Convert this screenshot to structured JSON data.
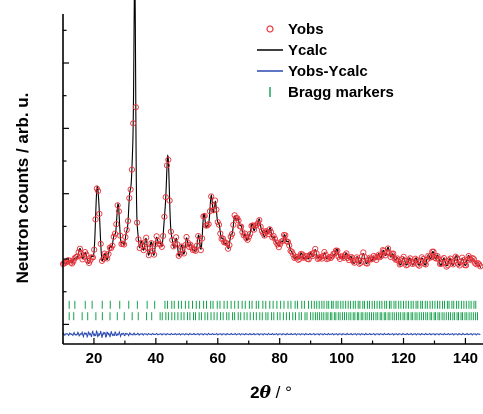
{
  "chart_data": {
    "type": "line",
    "xlabel_symbol": "2",
    "xlabel_theta": "θ",
    "xlabel_unit": " / °",
    "ylabel": "Neutron counts / arb. u.",
    "xlim": [
      10,
      146
    ],
    "ylim": [
      -6,
      95
    ],
    "x_ticks": [
      20,
      40,
      60,
      80,
      100,
      120,
      140
    ],
    "y_ticks_labeled": false,
    "legend_position": "top-right",
    "colors": {
      "yobs": "#e8323a",
      "ycalc": "#000000",
      "diff": "#2a48b0",
      "bragg": "#12a04a"
    },
    "legend": [
      {
        "key": "yobs",
        "label": "Yobs"
      },
      {
        "key": "ycalc",
        "label": "Ycalc"
      },
      {
        "key": "diff",
        "label": "Yobs-Ycalc"
      },
      {
        "key": "bragg",
        "label": "Bragg markers"
      }
    ],
    "background": 17,
    "diff_offset": -3,
    "bragg_row1_level": 6,
    "bragg_row2_level": 2.5,
    "peaks": [
      [
        12,
        0.5,
        1
      ],
      [
        14,
        0.6,
        2
      ],
      [
        15.5,
        0.5,
        5
      ],
      [
        17.2,
        0.5,
        4
      ],
      [
        19.3,
        0.5,
        3
      ],
      [
        21,
        0.5,
        23
      ],
      [
        21.8,
        0.4,
        9
      ],
      [
        23.5,
        0.5,
        4
      ],
      [
        25.2,
        0.5,
        6
      ],
      [
        26.5,
        0.5,
        9
      ],
      [
        27.8,
        0.5,
        19
      ],
      [
        29.2,
        0.5,
        7
      ],
      [
        30.5,
        0.5,
        10
      ],
      [
        31.5,
        0.4,
        17
      ],
      [
        32.1,
        0.4,
        12
      ],
      [
        32.6,
        0.35,
        26
      ],
      [
        33.2,
        0.28,
        82
      ],
      [
        34,
        0.4,
        11
      ],
      [
        35.3,
        0.5,
        8
      ],
      [
        36.8,
        0.5,
        9
      ],
      [
        38.5,
        0.5,
        8
      ],
      [
        40.2,
        0.5,
        9
      ],
      [
        41.4,
        0.5,
        7
      ],
      [
        42.8,
        0.5,
        13
      ],
      [
        43.9,
        0.5,
        33
      ],
      [
        45.2,
        0.5,
        8
      ],
      [
        46.6,
        0.5,
        9
      ],
      [
        48.3,
        0.5,
        7
      ],
      [
        49.9,
        0.5,
        9
      ],
      [
        51.2,
        0.5,
        7
      ],
      [
        52.4,
        0.5,
        5
      ],
      [
        53.8,
        0.5,
        10
      ],
      [
        55.5,
        0.5,
        16
      ],
      [
        56.7,
        0.5,
        11
      ],
      [
        57.9,
        0.5,
        21
      ],
      [
        59.2,
        0.5,
        19
      ],
      [
        60.4,
        0.5,
        12
      ],
      [
        61.6,
        0.5,
        8
      ],
      [
        62.8,
        0.5,
        7
      ],
      [
        64.2,
        0.5,
        9
      ],
      [
        65.4,
        0.5,
        14
      ],
      [
        66.5,
        0.5,
        13
      ],
      [
        67.6,
        0.5,
        11
      ],
      [
        68.8,
        0.5,
        9
      ],
      [
        70,
        0.5,
        8
      ],
      [
        71.1,
        0.5,
        12
      ],
      [
        72.3,
        0.5,
        11
      ],
      [
        73.4,
        0.5,
        13
      ],
      [
        74.5,
        0.5,
        9
      ],
      [
        75.7,
        0.5,
        10
      ],
      [
        76.9,
        0.5,
        11
      ],
      [
        78.1,
        0.5,
        8
      ],
      [
        79.2,
        0.5,
        6
      ],
      [
        80.4,
        0.5,
        7
      ],
      [
        81.6,
        0.5,
        9
      ],
      [
        82.8,
        0.5,
        7
      ],
      [
        84,
        0.5,
        4
      ],
      [
        85.5,
        0.5,
        3
      ],
      [
        87,
        0.5,
        4
      ],
      [
        88.5,
        0.5,
        3
      ],
      [
        90,
        0.5,
        4
      ],
      [
        91.5,
        0.5,
        5
      ],
      [
        93,
        0.5,
        3
      ],
      [
        94.5,
        0.5,
        4
      ],
      [
        96,
        0.5,
        3
      ],
      [
        97.3,
        0.5,
        3
      ],
      [
        98.5,
        0.5,
        5
      ],
      [
        100,
        0.5,
        3
      ],
      [
        101.5,
        0.5,
        4
      ],
      [
        103,
        0.5,
        3
      ],
      [
        105,
        0.5,
        3
      ],
      [
        107,
        0.5,
        4
      ],
      [
        109,
        0.5,
        3
      ],
      [
        110.5,
        0.5,
        3
      ],
      [
        112,
        0.5,
        4
      ],
      [
        113.5,
        0.5,
        5
      ],
      [
        115,
        0.5,
        6
      ],
      [
        116.5,
        0.5,
        4
      ],
      [
        118,
        0.5,
        3
      ],
      [
        120,
        0.5,
        3
      ],
      [
        122,
        0.5,
        3
      ],
      [
        124,
        0.5,
        3
      ],
      [
        126,
        0.5,
        3
      ],
      [
        128,
        0.5,
        4
      ],
      [
        129.5,
        0.5,
        5
      ],
      [
        131,
        0.5,
        4
      ],
      [
        133,
        0.5,
        3
      ],
      [
        135,
        0.5,
        3
      ],
      [
        137,
        0.5,
        4
      ],
      [
        139,
        0.5,
        3
      ],
      [
        141,
        0.5,
        4
      ],
      [
        142.5,
        0.5,
        3
      ],
      [
        144,
        0.5,
        2
      ]
    ]
  }
}
